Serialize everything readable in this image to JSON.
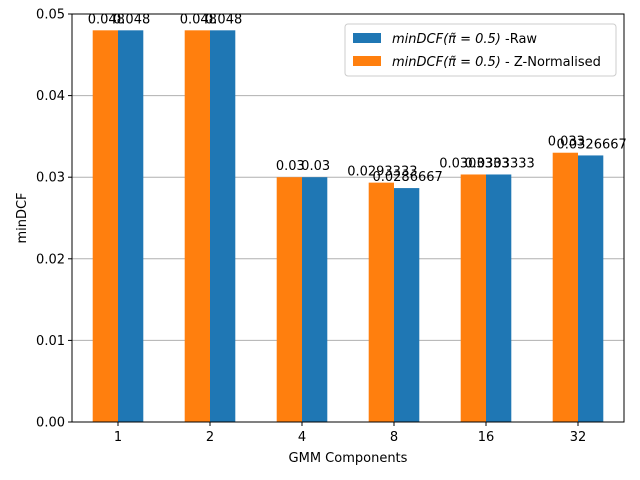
{
  "chart_data": {
    "type": "bar",
    "categories": [
      "1",
      "2",
      "4",
      "8",
      "16",
      "32"
    ],
    "series": [
      {
        "name_math": "minDCF(π̃ = 0.5)",
        "name_suffix": " - Z-Normalised",
        "color": "#ff7f0e",
        "values": [
          0.048,
          0.048,
          0.03,
          0.0293333,
          0.0303333,
          0.033
        ],
        "labels": [
          "0.048",
          "0.048",
          "0.03",
          "0.0293333",
          "0.0303333",
          "0.033"
        ]
      },
      {
        "name_math": "minDCF(π̃ = 0.5)",
        "name_suffix": " -Raw",
        "color": "#1f77b4",
        "values": [
          0.048,
          0.048,
          0.03,
          0.0286667,
          0.0303333,
          0.0326667
        ],
        "labels": [
          "0.048",
          "0.048",
          "0.03",
          "0.0286667",
          "0.0303333",
          "0.0326667"
        ]
      }
    ],
    "legend_order": [
      1,
      0
    ],
    "xlabel": "GMM Components",
    "ylabel": "minDCF",
    "ylim": [
      0,
      0.05
    ],
    "yticks": [
      0.0,
      0.01,
      0.02,
      0.03,
      0.04,
      0.05
    ],
    "ytick_labels": [
      "0.00",
      "0.01",
      "0.02",
      "0.03",
      "0.04",
      "0.05"
    ],
    "grid": "y",
    "grid_color": "#b0b0b0",
    "legend_position": "top-right"
  }
}
